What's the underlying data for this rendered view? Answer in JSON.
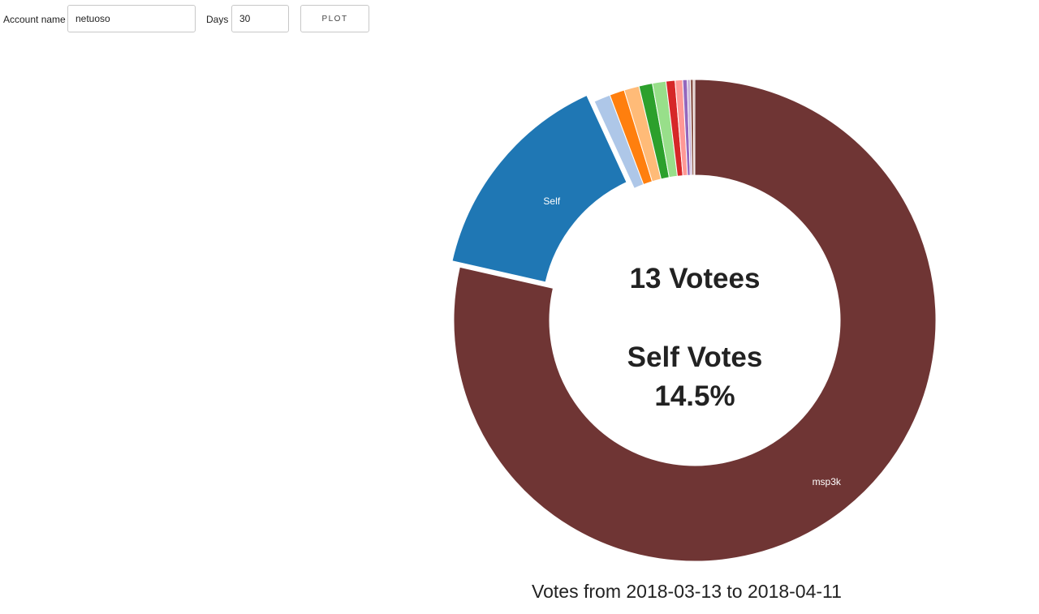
{
  "controls": {
    "account_label": "Account name",
    "account_value": "netuoso",
    "days_label": "Days",
    "days_value": "30",
    "plot_label": "PLOT"
  },
  "chart_data": {
    "type": "pie",
    "donut": true,
    "center_text": {
      "votees": "13 Votees",
      "self_votes_label": "Self Votes",
      "self_votes_pct": "14.5%"
    },
    "title": "Votes from 2018-03-13 to 2018-04-11",
    "slices": [
      {
        "label": "msp3k",
        "value": 78.0,
        "color": "#6f3534",
        "show_label": true,
        "highlighted": false
      },
      {
        "label": "Self",
        "value": 14.5,
        "color": "#1f77b4",
        "show_label": true,
        "highlighted": true
      },
      {
        "label": "",
        "value": 1.1,
        "color": "#aec7e8",
        "show_label": false,
        "highlighted": false
      },
      {
        "label": "",
        "value": 1.0,
        "color": "#ff7f0e",
        "show_label": false,
        "highlighted": false
      },
      {
        "label": "",
        "value": 1.0,
        "color": "#ffbb78",
        "show_label": false,
        "highlighted": false
      },
      {
        "label": "",
        "value": 0.9,
        "color": "#2ca02c",
        "show_label": false,
        "highlighted": false
      },
      {
        "label": "",
        "value": 0.9,
        "color": "#98df8a",
        "show_label": false,
        "highlighted": false
      },
      {
        "label": "",
        "value": 0.6,
        "color": "#d62728",
        "show_label": false,
        "highlighted": false
      },
      {
        "label": "",
        "value": 0.5,
        "color": "#ff9896",
        "show_label": false,
        "highlighted": false
      },
      {
        "label": "",
        "value": 0.3,
        "color": "#9467bd",
        "show_label": false,
        "highlighted": false
      },
      {
        "label": "",
        "value": 0.2,
        "color": "#c5b0d5",
        "show_label": false,
        "highlighted": false
      },
      {
        "label": "",
        "value": 0.2,
        "color": "#8c564b",
        "show_label": false,
        "highlighted": false
      },
      {
        "label": "",
        "value": 0.1,
        "color": "#c49c94",
        "show_label": false,
        "highlighted": false
      }
    ]
  }
}
